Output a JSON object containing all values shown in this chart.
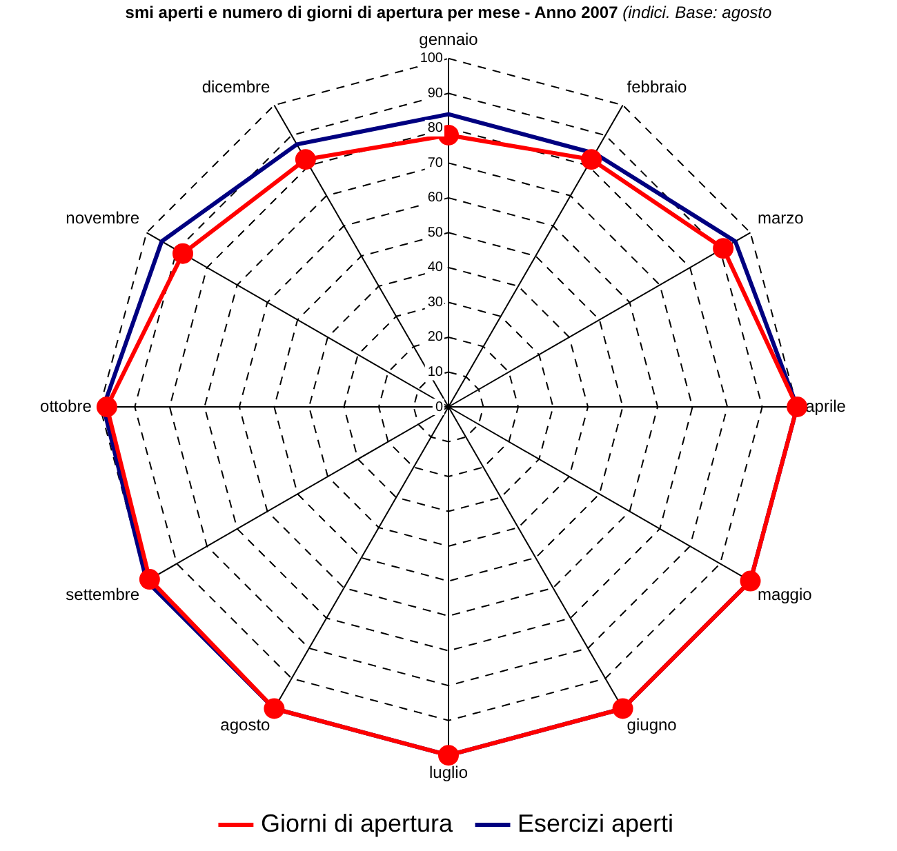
{
  "chart_data": {
    "type": "radar",
    "title": "smi aperti e numero di giorni di apertura per mese - Anno 2007",
    "subtitle": "(indici. Base: agosto",
    "categories": [
      "gennaio",
      "febbraio",
      "marzo",
      "aprile",
      "maggio",
      "giugno",
      "luglio",
      "agosto",
      "settembre",
      "ottobre",
      "novembre",
      "dicembre"
    ],
    "series": [
      {
        "name": "Giorni di apertura",
        "color": "#ff0000",
        "marker": "circle",
        "values": [
          78,
          82,
          91,
          100,
          100,
          100,
          100,
          100,
          99,
          98,
          88,
          82
        ]
      },
      {
        "name": "Esercizi aperti",
        "color": "#000080",
        "marker": "none",
        "values": [
          84,
          84,
          95,
          100,
          100,
          100,
          100,
          100,
          100,
          99,
          95,
          87
        ]
      }
    ],
    "ylim": [
      0,
      100
    ],
    "yticks": [
      0,
      10,
      20,
      30,
      40,
      50,
      60,
      70,
      80,
      90,
      100
    ],
    "grid": true,
    "legend": "bottom",
    "line_style": "solid"
  }
}
